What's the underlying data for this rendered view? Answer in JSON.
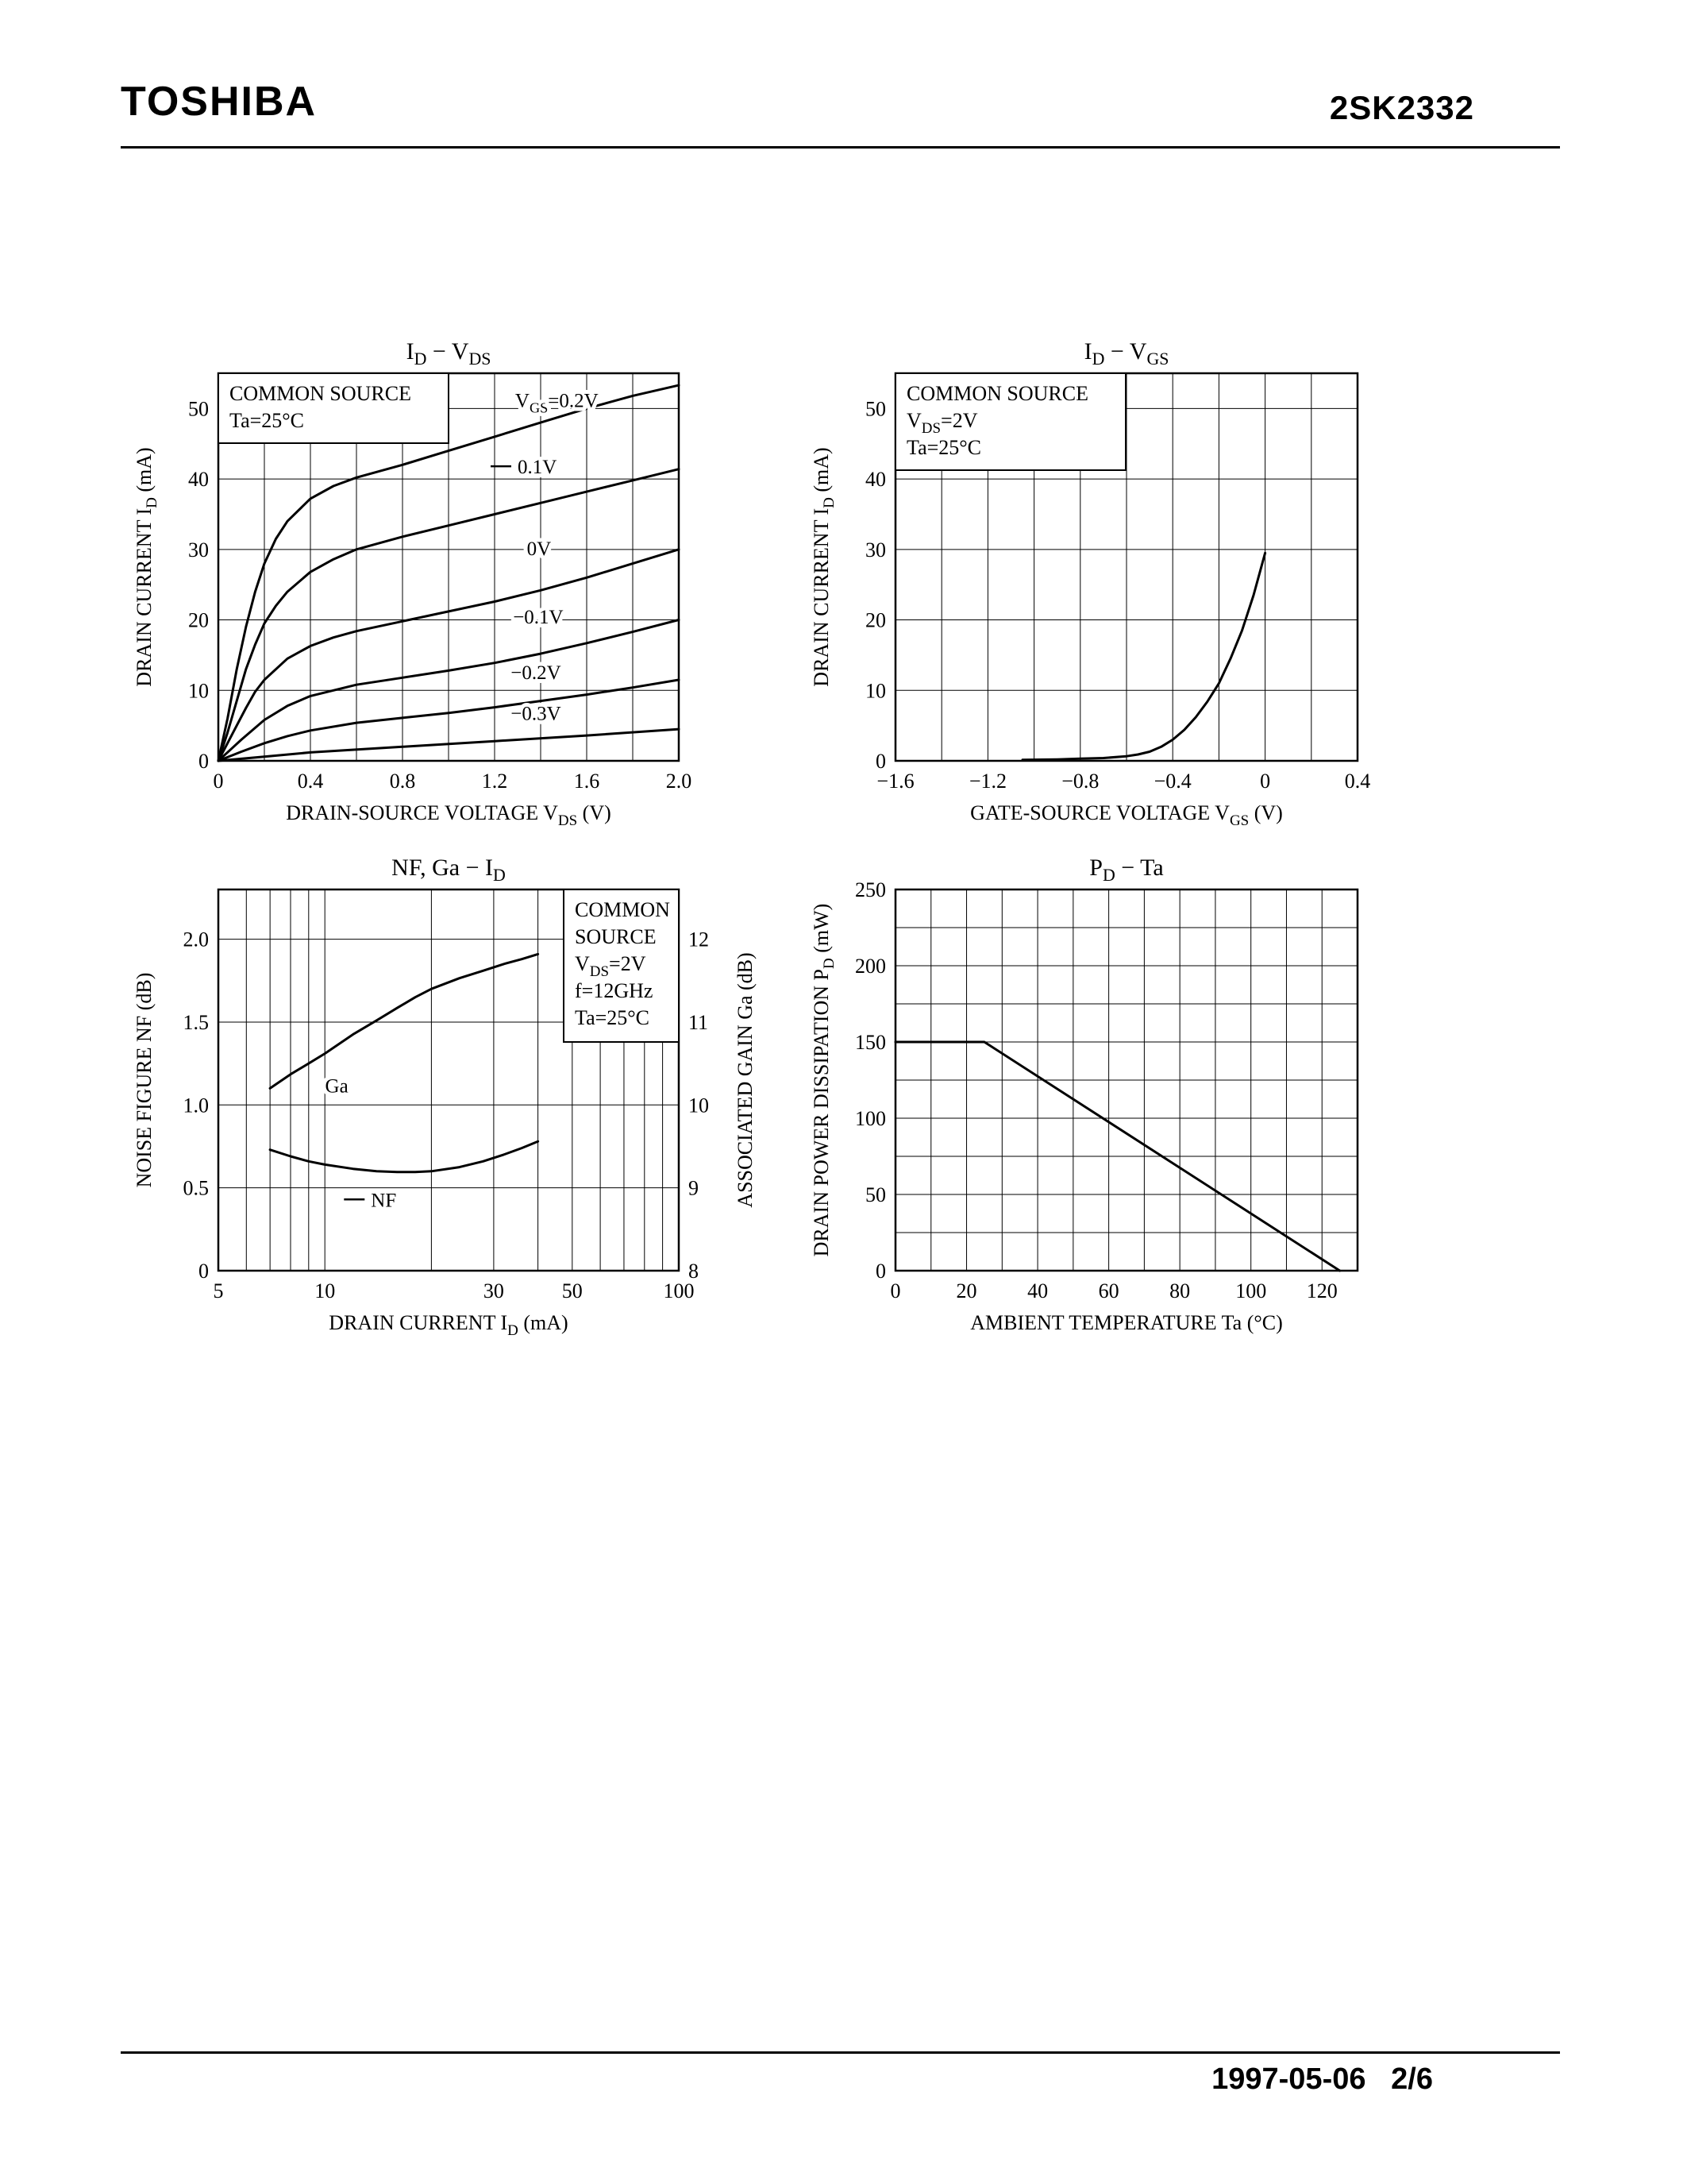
{
  "page": {
    "brand": "TOSHIBA",
    "part_number": "2SK2332",
    "footer": "1997-05-06   2/6"
  },
  "chart_data": [
    {
      "id": "id-vds",
      "type": "line",
      "title": "I~D~ − V~DS~",
      "xlabel": "DRAIN-SOURCE VOLTAGE   V~DS~   (V)",
      "ylabel": "DRAIN CURRENT   I~D~   (mA)",
      "xlim": [
        0,
        2
      ],
      "ylim": [
        0,
        55
      ],
      "grid": "on",
      "xticks": [
        {
          "v": 0,
          "l": "0"
        },
        {
          "v": 0.4,
          "l": "0.4"
        },
        {
          "v": 0.8,
          "l": "0.8"
        },
        {
          "v": 1.2,
          "l": "1.2"
        },
        {
          "v": 1.6,
          "l": "1.6"
        },
        {
          "v": 2,
          "l": "2.0"
        }
      ],
      "yticks": [
        {
          "v": 0,
          "l": "0"
        },
        {
          "v": 10,
          "l": "10"
        },
        {
          "v": 20,
          "l": "20"
        },
        {
          "v": 30,
          "l": "30"
        },
        {
          "v": 40,
          "l": "40"
        },
        {
          "v": 50,
          "l": "50"
        }
      ],
      "xgrid": [
        0.2,
        0.4,
        0.6,
        0.8,
        1,
        1.2,
        1.4,
        1.6,
        1.8
      ],
      "ygrid": [
        10,
        20,
        30,
        40,
        50
      ],
      "legend": {
        "lines": [
          "COMMON SOURCE",
          "Ta=25°C"
        ]
      },
      "labels": [
        {
          "text": "V~GS~=0.2V",
          "x": 1.47,
          "y": 51.2,
          "anchor": "middle"
        },
        {
          "text": "0.1V",
          "x": 1.3,
          "y": 41.8,
          "anchor": "start",
          "leader": true
        },
        {
          "text": "0V",
          "x": 1.34,
          "y": 30.2,
          "anchor": "start"
        },
        {
          "text": "−0.1V",
          "x": 1.28,
          "y": 20.5,
          "anchor": "start"
        },
        {
          "text": "−0.2V",
          "x": 1.27,
          "y": 12.6,
          "anchor": "start"
        },
        {
          "text": "−0.3V",
          "x": 1.27,
          "y": 6.8,
          "anchor": "start"
        }
      ],
      "series": [
        {
          "name": "VGS=0.2V",
          "points": [
            [
              0,
              0
            ],
            [
              0.04,
              6
            ],
            [
              0.08,
              13
            ],
            [
              0.12,
              19
            ],
            [
              0.16,
              24
            ],
            [
              0.2,
              28
            ],
            [
              0.25,
              31.5
            ],
            [
              0.3,
              34
            ],
            [
              0.4,
              37.2
            ],
            [
              0.5,
              39
            ],
            [
              0.6,
              40.2
            ],
            [
              0.8,
              42
            ],
            [
              1,
              44
            ],
            [
              1.2,
              46
            ],
            [
              1.4,
              48
            ],
            [
              1.6,
              50
            ],
            [
              1.8,
              51.8
            ],
            [
              2,
              53.3
            ]
          ]
        },
        {
          "name": "VGS=0.1V",
          "points": [
            [
              0,
              0
            ],
            [
              0.04,
              4
            ],
            [
              0.08,
              8.5
            ],
            [
              0.12,
              13
            ],
            [
              0.16,
              16.5
            ],
            [
              0.2,
              19.5
            ],
            [
              0.25,
              22
            ],
            [
              0.3,
              24
            ],
            [
              0.4,
              26.8
            ],
            [
              0.5,
              28.6
            ],
            [
              0.6,
              30
            ],
            [
              0.8,
              31.8
            ],
            [
              1,
              33.4
            ],
            [
              1.2,
              35
            ],
            [
              1.4,
              36.6
            ],
            [
              1.6,
              38.2
            ],
            [
              1.8,
              39.8
            ],
            [
              2,
              41.4
            ]
          ]
        },
        {
          "name": "VGS=0V",
          "points": [
            [
              0,
              0
            ],
            [
              0.04,
              2.5
            ],
            [
              0.08,
              5
            ],
            [
              0.12,
              7.5
            ],
            [
              0.16,
              9.8
            ],
            [
              0.2,
              11.5
            ],
            [
              0.3,
              14.5
            ],
            [
              0.4,
              16.3
            ],
            [
              0.5,
              17.5
            ],
            [
              0.6,
              18.4
            ],
            [
              0.8,
              19.8
            ],
            [
              1,
              21.2
            ],
            [
              1.2,
              22.6
            ],
            [
              1.4,
              24.2
            ],
            [
              1.6,
              26
            ],
            [
              1.8,
              28
            ],
            [
              2,
              30
            ]
          ]
        },
        {
          "name": "VGS=-0.1V",
          "points": [
            [
              0,
              0
            ],
            [
              0.05,
              1.5
            ],
            [
              0.1,
              3
            ],
            [
              0.2,
              5.8
            ],
            [
              0.3,
              7.8
            ],
            [
              0.4,
              9.2
            ],
            [
              0.6,
              10.8
            ],
            [
              0.8,
              11.8
            ],
            [
              1,
              12.8
            ],
            [
              1.2,
              13.9
            ],
            [
              1.4,
              15.2
            ],
            [
              1.6,
              16.7
            ],
            [
              1.8,
              18.3
            ],
            [
              2,
              20
            ]
          ]
        },
        {
          "name": "VGS=-0.2V",
          "points": [
            [
              0,
              0
            ],
            [
              0.1,
              1.3
            ],
            [
              0.2,
              2.5
            ],
            [
              0.3,
              3.5
            ],
            [
              0.4,
              4.3
            ],
            [
              0.6,
              5.4
            ],
            [
              0.8,
              6.1
            ],
            [
              1,
              6.8
            ],
            [
              1.2,
              7.6
            ],
            [
              1.4,
              8.5
            ],
            [
              1.6,
              9.4
            ],
            [
              1.8,
              10.4
            ],
            [
              2,
              11.5
            ]
          ]
        },
        {
          "name": "VGS=-0.3V",
          "points": [
            [
              0,
              0
            ],
            [
              0.2,
              0.6
            ],
            [
              0.4,
              1.2
            ],
            [
              0.8,
              2
            ],
            [
              1.2,
              2.8
            ],
            [
              1.6,
              3.6
            ],
            [
              2,
              4.5
            ]
          ]
        }
      ]
    },
    {
      "id": "id-vgs",
      "type": "line",
      "title": "I~D~ − V~GS~",
      "xlabel": "GATE-SOURCE VOLTAGE   V~GS~   (V)",
      "ylabel": "DRAIN CURRENT   I~D~   (mA)",
      "xlim": [
        -1.6,
        0.4
      ],
      "ylim": [
        0,
        55
      ],
      "grid": "on",
      "xticks": [
        {
          "v": -1.6,
          "l": "−1.6"
        },
        {
          "v": -1.2,
          "l": "−1.2"
        },
        {
          "v": -0.8,
          "l": "−0.8"
        },
        {
          "v": -0.4,
          "l": "−0.4"
        },
        {
          "v": 0,
          "l": "0"
        },
        {
          "v": 0.4,
          "l": "0.4"
        }
      ],
      "yticks": [
        {
          "v": 0,
          "l": "0"
        },
        {
          "v": 10,
          "l": "10"
        },
        {
          "v": 20,
          "l": "20"
        },
        {
          "v": 30,
          "l": "30"
        },
        {
          "v": 40,
          "l": "40"
        },
        {
          "v": 50,
          "l": "50"
        }
      ],
      "xgrid": [
        -1.4,
        -1.2,
        -1,
        -0.8,
        -0.6,
        -0.4,
        -0.2,
        0,
        0.2
      ],
      "ygrid": [
        10,
        20,
        30,
        40,
        50
      ],
      "legend": {
        "lines": [
          "COMMON SOURCE",
          "V~DS~=2V",
          "Ta=25°C"
        ]
      },
      "labels": [],
      "series": [
        {
          "name": "ID",
          "points": [
            [
              -1.05,
              0.15
            ],
            [
              -0.9,
              0.2
            ],
            [
              -0.8,
              0.3
            ],
            [
              -0.7,
              0.4
            ],
            [
              -0.6,
              0.65
            ],
            [
              -0.55,
              0.9
            ],
            [
              -0.5,
              1.3
            ],
            [
              -0.45,
              2
            ],
            [
              -0.4,
              3
            ],
            [
              -0.35,
              4.4
            ],
            [
              -0.3,
              6.2
            ],
            [
              -0.25,
              8.4
            ],
            [
              -0.2,
              11
            ],
            [
              -0.15,
              14.5
            ],
            [
              -0.1,
              18.5
            ],
            [
              -0.05,
              23.5
            ],
            [
              0,
              29.5
            ]
          ]
        }
      ]
    },
    {
      "id": "nf-ga-id",
      "type": "line",
      "xscale": "log",
      "title": "NF, Ga − I~D~",
      "xlabel": "DRAIN CURRENT   I~D~   (mA)",
      "ylabel": "NOISE FIGURE   NF   (dB)",
      "y2label": "ASSOCIATED GAIN   Ga   (dB)",
      "xlim": [
        5,
        100
      ],
      "ylim": [
        0,
        2.3
      ],
      "y2lim": [
        8,
        12.6
      ],
      "grid": "on",
      "xticks": [
        {
          "v": 5,
          "l": "5"
        },
        {
          "v": 10,
          "l": "10"
        },
        {
          "v": 30,
          "l": "30"
        },
        {
          "v": 50,
          "l": "50"
        },
        {
          "v": 100,
          "l": "100"
        }
      ],
      "yticks": [
        {
          "v": 0,
          "l": "0"
        },
        {
          "v": 0.5,
          "l": "0.5"
        },
        {
          "v": 1,
          "l": "1.0"
        },
        {
          "v": 1.5,
          "l": "1.5"
        },
        {
          "v": 2,
          "l": "2.0"
        }
      ],
      "y2ticks": [
        {
          "v": 8,
          "l": "8"
        },
        {
          "v": 9,
          "l": "9"
        },
        {
          "v": 10,
          "l": "10"
        },
        {
          "v": 11,
          "l": "11"
        },
        {
          "v": 12,
          "l": "12"
        }
      ],
      "xgrid": [
        6,
        7,
        8,
        9,
        10,
        20,
        30,
        40,
        50,
        60,
        70,
        80,
        90
      ],
      "ygrid": [
        0.5,
        1,
        1.5,
        2
      ],
      "legend": {
        "lines": [
          "COMMON",
          "SOURCE",
          "V~DS~=2V",
          "f=12GHz",
          "Ta=25°C"
        ]
      },
      "labels": [
        {
          "text": "Ga",
          "x": 10.8,
          "y": 1.12,
          "anchor": "middle"
        },
        {
          "text": "NF",
          "x": 13.5,
          "y": 0.43,
          "anchor": "start",
          "leader": true
        }
      ],
      "series": [
        {
          "name": "Ga",
          "axis": "y2",
          "points": [
            [
              7,
              10.2
            ],
            [
              8,
              10.37
            ],
            [
              9,
              10.5
            ],
            [
              10,
              10.62
            ],
            [
              12,
              10.85
            ],
            [
              14,
              11.02
            ],
            [
              16,
              11.17
            ],
            [
              18,
              11.3
            ],
            [
              20,
              11.4
            ],
            [
              24,
              11.53
            ],
            [
              28,
              11.62
            ],
            [
              32,
              11.7
            ],
            [
              36,
              11.76
            ],
            [
              40,
              11.82
            ]
          ]
        },
        {
          "name": "NF",
          "points": [
            [
              7,
              0.73
            ],
            [
              8,
              0.69
            ],
            [
              9,
              0.66
            ],
            [
              10,
              0.64
            ],
            [
              12,
              0.615
            ],
            [
              14,
              0.6
            ],
            [
              16,
              0.595
            ],
            [
              18,
              0.595
            ],
            [
              20,
              0.6
            ],
            [
              24,
              0.625
            ],
            [
              28,
              0.66
            ],
            [
              32,
              0.7
            ],
            [
              36,
              0.74
            ],
            [
              40,
              0.78
            ]
          ]
        }
      ]
    },
    {
      "id": "pd-ta",
      "type": "line",
      "title": "P~D~ − Ta",
      "xlabel": "AMBIENT TEMPERATURE   Ta   (°C)",
      "ylabel": "DRAIN POWER DISSIPATION   P~D~   (mW)",
      "xlim": [
        0,
        130
      ],
      "ylim": [
        0,
        250
      ],
      "grid": "on",
      "xticks": [
        {
          "v": 0,
          "l": "0"
        },
        {
          "v": 20,
          "l": "20"
        },
        {
          "v": 40,
          "l": "40"
        },
        {
          "v": 60,
          "l": "60"
        },
        {
          "v": 80,
          "l": "80"
        },
        {
          "v": 100,
          "l": "100"
        },
        {
          "v": 120,
          "l": "120"
        }
      ],
      "yticks": [
        {
          "v": 0,
          "l": "0"
        },
        {
          "v": 50,
          "l": "50"
        },
        {
          "v": 100,
          "l": "100"
        },
        {
          "v": 150,
          "l": "150"
        },
        {
          "v": 200,
          "l": "200"
        },
        {
          "v": 250,
          "l": "250"
        }
      ],
      "xgrid": [
        10,
        20,
        30,
        40,
        50,
        60,
        70,
        80,
        90,
        100,
        110,
        120
      ],
      "ygrid": [
        25,
        50,
        75,
        100,
        125,
        150,
        175,
        200,
        225
      ],
      "labels": [],
      "series": [
        {
          "name": "PD",
          "points": [
            [
              0,
              150
            ],
            [
              25,
              150
            ],
            [
              125,
              0
            ]
          ]
        }
      ]
    }
  ]
}
